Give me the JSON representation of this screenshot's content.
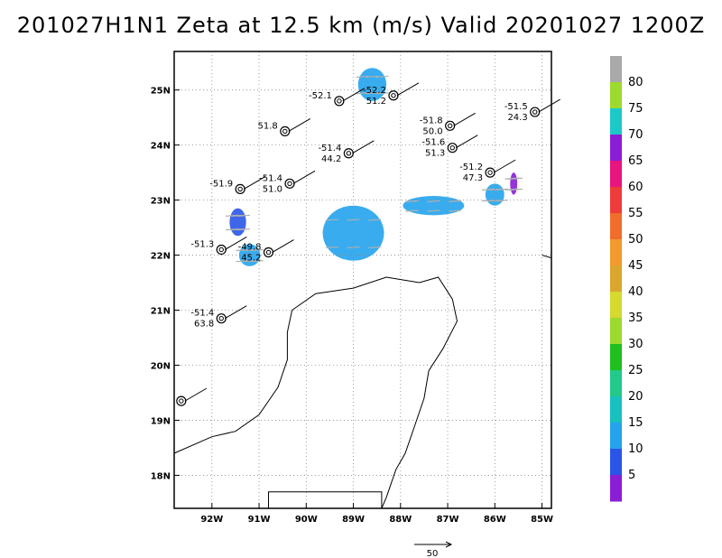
{
  "title": "201027H1N1 Zeta at 12.5 km (m/s) Valid 20201027 1200Z",
  "map": {
    "lon_range": [
      -92.8,
      -84.8
    ],
    "lat_range": [
      17.4,
      25.7
    ],
    "lon_ticks": [
      "92W",
      "91W",
      "90W",
      "89W",
      "88W",
      "87W",
      "86W",
      "85W"
    ],
    "lat_ticks": [
      "18N",
      "19N",
      "20N",
      "21N",
      "22N",
      "23N",
      "24N",
      "25N"
    ],
    "grid": "dotted"
  },
  "colorbar": {
    "labels": [
      "80",
      "75",
      "70",
      "65",
      "60",
      "55",
      "50",
      "45",
      "40",
      "35",
      "30",
      "25",
      "20",
      "15",
      "10",
      "5"
    ],
    "colors": [
      "#a9a9a9",
      "#9ed92e",
      "#1cc9c9",
      "#8a1ed6",
      "#e8157e",
      "#ef3b3b",
      "#f26d2b",
      "#f29a2e",
      "#dba62e",
      "#d6d92e",
      "#9ed92e",
      "#1fbf1f",
      "#22c98a",
      "#18c0c0",
      "#24a3ed",
      "#2a55e8",
      "#8a1ed6"
    ]
  },
  "stations": [
    {
      "id": "s1",
      "lon": -89.3,
      "lat": 24.8,
      "label_top": "-52.1",
      "label_bot": ""
    },
    {
      "id": "s2",
      "lon": -88.15,
      "lat": 24.9,
      "label_top": "-52.2",
      "label_bot": "51.2"
    },
    {
      "id": "s3",
      "lon": -85.15,
      "lat": 24.6,
      "label_top": "-51.5",
      "label_bot": "24.3"
    },
    {
      "id": "s4",
      "lon": -90.45,
      "lat": 24.25,
      "label_top": "51.8",
      "label_bot": ""
    },
    {
      "id": "s5",
      "lon": -86.95,
      "lat": 24.35,
      "label_top": "-51.8",
      "label_bot": "50.0"
    },
    {
      "id": "s6",
      "lon": -89.1,
      "lat": 23.85,
      "label_top": "-51.4",
      "label_bot": "44.2"
    },
    {
      "id": "s7",
      "lon": -86.9,
      "lat": 23.95,
      "label_top": "-51.6",
      "label_bot": "51.3"
    },
    {
      "id": "s8",
      "lon": -90.35,
      "lat": 23.3,
      "label_top": "-51.4",
      "label_bot": "51.0"
    },
    {
      "id": "s9",
      "lon": -91.4,
      "lat": 23.2,
      "label_top": "-51.9",
      "label_bot": ""
    },
    {
      "id": "s10",
      "lon": -86.1,
      "lat": 23.5,
      "label_top": "-51.2",
      "label_bot": "47.3"
    },
    {
      "id": "s11",
      "lon": -91.8,
      "lat": 22.1,
      "label_top": "-51.3",
      "label_bot": ""
    },
    {
      "id": "s12",
      "lon": -90.8,
      "lat": 22.05,
      "label_top": "-49.8",
      "label_bot": "45.2"
    },
    {
      "id": "s13",
      "lon": -91.8,
      "lat": 20.85,
      "label_top": "-51.4",
      "label_bot": "63.8"
    },
    {
      "id": "s14",
      "lon": -92.65,
      "lat": 19.35,
      "label_top": "",
      "label_bot": ""
    }
  ],
  "wind_speed_regions": [
    {
      "id": "r1",
      "lon": -88.6,
      "lat": 25.1,
      "w": 0.6,
      "h": 0.6,
      "color": "#24a3ed"
    },
    {
      "id": "r2",
      "lon": -89.0,
      "lat": 22.4,
      "w": 1.3,
      "h": 1.0,
      "color": "#24a3ed"
    },
    {
      "id": "r3",
      "lon": -87.3,
      "lat": 22.9,
      "w": 1.3,
      "h": 0.35,
      "color": "#24a3ed"
    },
    {
      "id": "r4",
      "lon": -91.45,
      "lat": 22.6,
      "w": 0.35,
      "h": 0.5,
      "color": "#2a55e8"
    },
    {
      "id": "r5",
      "lon": -91.2,
      "lat": 22.0,
      "w": 0.45,
      "h": 0.4,
      "color": "#24a3ed"
    },
    {
      "id": "r6",
      "lon": -86.0,
      "lat": 23.1,
      "w": 0.4,
      "h": 0.4,
      "color": "#24a3ed"
    },
    {
      "id": "r7",
      "lon": -85.6,
      "lat": 23.3,
      "w": 0.15,
      "h": 0.4,
      "color": "#8a1ed6"
    }
  ],
  "reference_vector": {
    "label": "50"
  }
}
